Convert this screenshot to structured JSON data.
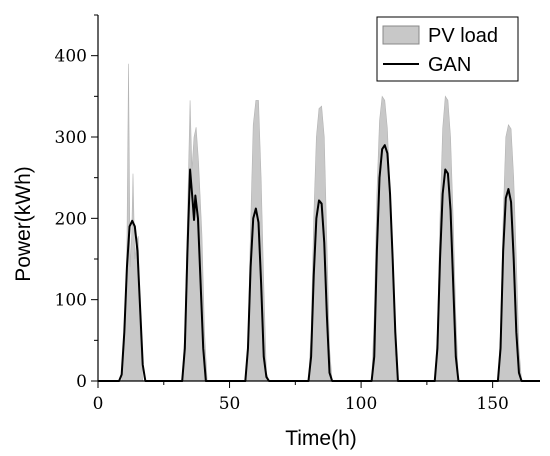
{
  "chart_data": {
    "type": "area",
    "xlabel": "Time(h)",
    "ylabel": "Power(kWh)",
    "xlim": [
      0,
      168
    ],
    "ylim": [
      0,
      450
    ],
    "xticks": [
      0,
      50,
      100,
      150
    ],
    "yticks": [
      0,
      100,
      200,
      300,
      400
    ],
    "grid": false,
    "legend_position": "top-right",
    "colors": {
      "pv_fill": "#c8c8c8",
      "pv_edge": "#b4b4b4",
      "gan_line": "#000000"
    },
    "series": [
      {
        "name": "PV load",
        "style": "filled-area",
        "points": [
          [
            0,
            0
          ],
          [
            8,
            0
          ],
          [
            9,
            0
          ],
          [
            10,
            40
          ],
          [
            11,
            170
          ],
          [
            11.6,
            390
          ],
          [
            12.2,
            140
          ],
          [
            12.8,
            180
          ],
          [
            13.3,
            255
          ],
          [
            14,
            150
          ],
          [
            14.6,
            170
          ],
          [
            15.3,
            178
          ],
          [
            16,
            60
          ],
          [
            17,
            0
          ],
          [
            17.5,
            0
          ],
          [
            31,
            0
          ],
          [
            32,
            0
          ],
          [
            33,
            60
          ],
          [
            34,
            200
          ],
          [
            35,
            345
          ],
          [
            35.7,
            260
          ],
          [
            36.5,
            300
          ],
          [
            37.3,
            312
          ],
          [
            38.2,
            270
          ],
          [
            39.5,
            180
          ],
          [
            40.5,
            60
          ],
          [
            41.5,
            0
          ],
          [
            55,
            0
          ],
          [
            56,
            0
          ],
          [
            57,
            50
          ],
          [
            58,
            190
          ],
          [
            59,
            315
          ],
          [
            60,
            345
          ],
          [
            61,
            345
          ],
          [
            62,
            250
          ],
          [
            63,
            120
          ],
          [
            64,
            10
          ],
          [
            65,
            0
          ],
          [
            79,
            0
          ],
          [
            80,
            0
          ],
          [
            81,
            60
          ],
          [
            82,
            200
          ],
          [
            83,
            300
          ],
          [
            84,
            335
          ],
          [
            85,
            338
          ],
          [
            86,
            300
          ],
          [
            87,
            170
          ],
          [
            88,
            40
          ],
          [
            89,
            0
          ],
          [
            103,
            0
          ],
          [
            104,
            0
          ],
          [
            105,
            80
          ],
          [
            106,
            230
          ],
          [
            107,
            320
          ],
          [
            108,
            350
          ],
          [
            109,
            345
          ],
          [
            110,
            310
          ],
          [
            111,
            230
          ],
          [
            112,
            130
          ],
          [
            113,
            30
          ],
          [
            114,
            0
          ],
          [
            127,
            0
          ],
          [
            128,
            0
          ],
          [
            129,
            60
          ],
          [
            130,
            200
          ],
          [
            131,
            310
          ],
          [
            132,
            350
          ],
          [
            133,
            345
          ],
          [
            134,
            300
          ],
          [
            135,
            200
          ],
          [
            136,
            80
          ],
          [
            137,
            0
          ],
          [
            151,
            0
          ],
          [
            152,
            0
          ],
          [
            153,
            60
          ],
          [
            154,
            200
          ],
          [
            155,
            300
          ],
          [
            156,
            315
          ],
          [
            157,
            310
          ],
          [
            158,
            250
          ],
          [
            159,
            150
          ],
          [
            160,
            40
          ],
          [
            161,
            0
          ],
          [
            168,
            0
          ]
        ]
      },
      {
        "name": "GAN",
        "style": "line",
        "points": [
          [
            0,
            0
          ],
          [
            8,
            0
          ],
          [
            9,
            8
          ],
          [
            10,
            60
          ],
          [
            11,
            140
          ],
          [
            12,
            190
          ],
          [
            13,
            197
          ],
          [
            14,
            190
          ],
          [
            15,
            160
          ],
          [
            16,
            90
          ],
          [
            17,
            20
          ],
          [
            18,
            0
          ],
          [
            32,
            0
          ],
          [
            33,
            40
          ],
          [
            34,
            160
          ],
          [
            35,
            260
          ],
          [
            36,
            220
          ],
          [
            36.5,
            198
          ],
          [
            37,
            228
          ],
          [
            38,
            200
          ],
          [
            39,
            120
          ],
          [
            40,
            40
          ],
          [
            41,
            0
          ],
          [
            55,
            0
          ],
          [
            56,
            0
          ],
          [
            57,
            40
          ],
          [
            58,
            140
          ],
          [
            59,
            200
          ],
          [
            60,
            212
          ],
          [
            61,
            195
          ],
          [
            62,
            120
          ],
          [
            63,
            30
          ],
          [
            64,
            5
          ],
          [
            65,
            0
          ],
          [
            79,
            0
          ],
          [
            80,
            0
          ],
          [
            81,
            30
          ],
          [
            82,
            130
          ],
          [
            83,
            200
          ],
          [
            84,
            222
          ],
          [
            85,
            218
          ],
          [
            86,
            170
          ],
          [
            87,
            80
          ],
          [
            88,
            10
          ],
          [
            89,
            0
          ],
          [
            103,
            0
          ],
          [
            104,
            0
          ],
          [
            105,
            30
          ],
          [
            106,
            160
          ],
          [
            107,
            250
          ],
          [
            108,
            285
          ],
          [
            109,
            290
          ],
          [
            110,
            280
          ],
          [
            111,
            230
          ],
          [
            112,
            150
          ],
          [
            113,
            60
          ],
          [
            114,
            0
          ],
          [
            127,
            0
          ],
          [
            128,
            0
          ],
          [
            129,
            40
          ],
          [
            130,
            150
          ],
          [
            131,
            230
          ],
          [
            132,
            260
          ],
          [
            133,
            255
          ],
          [
            134,
            210
          ],
          [
            135,
            120
          ],
          [
            136,
            30
          ],
          [
            137,
            0
          ],
          [
            151,
            0
          ],
          [
            152,
            0
          ],
          [
            153,
            40
          ],
          [
            154,
            160
          ],
          [
            155,
            225
          ],
          [
            156,
            236
          ],
          [
            157,
            220
          ],
          [
            158,
            150
          ],
          [
            159,
            60
          ],
          [
            160,
            10
          ],
          [
            161,
            0
          ],
          [
            168,
            0
          ]
        ]
      }
    ]
  }
}
